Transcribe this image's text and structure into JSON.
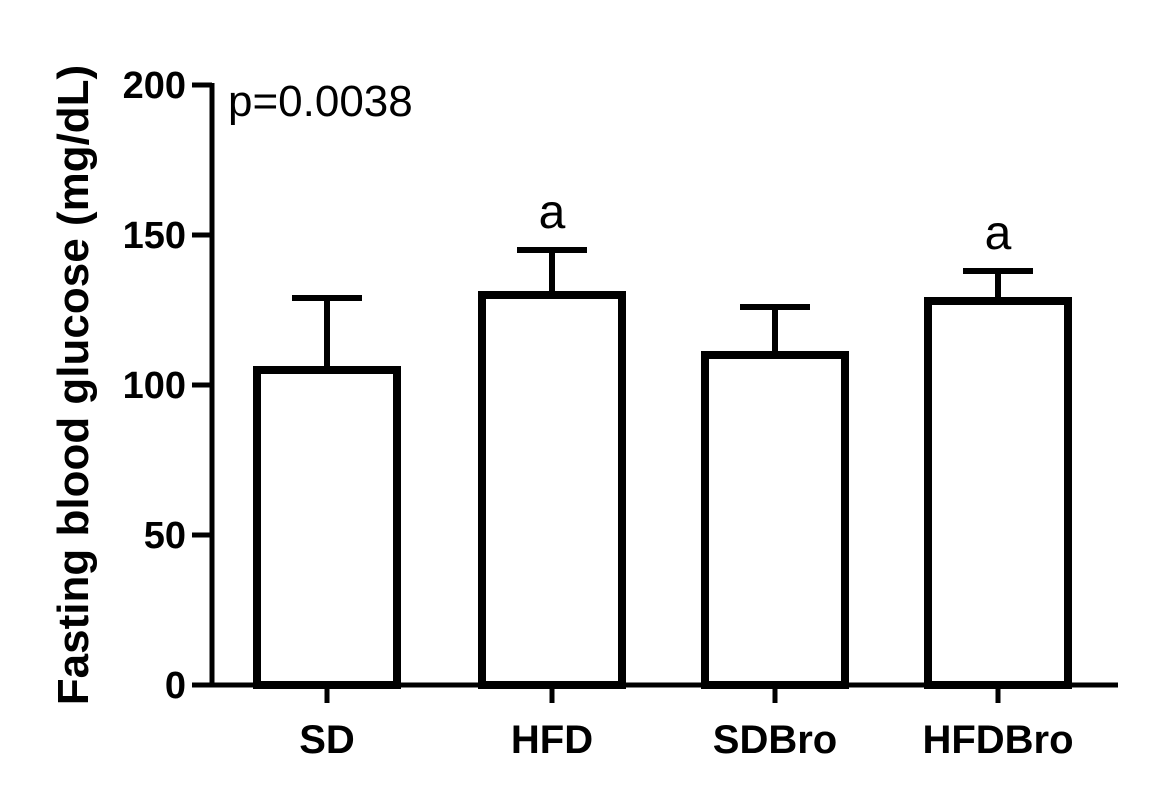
{
  "chart_data": {
    "type": "bar",
    "categories": [
      "SD",
      "HFD",
      "SDBro",
      "HFDBro"
    ],
    "values": [
      105,
      130,
      110,
      128
    ],
    "error_upper": [
      129,
      145,
      126,
      138
    ],
    "significance": [
      "",
      "a",
      "",
      "a"
    ],
    "ylabel": "Fasting blood glucose (mg/dL)",
    "xlabel": "",
    "ylim": [
      0,
      200
    ],
    "yticks": [
      0,
      50,
      100,
      150,
      200
    ],
    "annotation": "p=0.0038",
    "grid": false,
    "colors": {
      "bar_fill": "#ffffff",
      "bar_edge": "#000000"
    }
  }
}
